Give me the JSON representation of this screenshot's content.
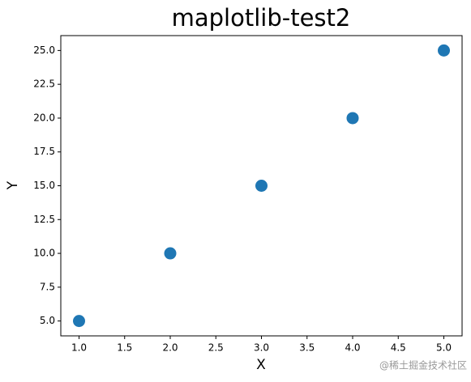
{
  "chart_data": {
    "type": "scatter",
    "title": "maplotlib-test2",
    "x_label": "X",
    "y_label": "Y",
    "x": [
      1,
      2,
      3,
      4,
      5
    ],
    "values": [
      5,
      10,
      15,
      20,
      25
    ],
    "color": "#1f77b4",
    "xlim": [
      0.8,
      5.2
    ],
    "ylim": [
      3.9,
      26.1
    ],
    "xticks": [
      {
        "value": 1,
        "label": "1.0"
      },
      1.5,
      {
        "value": 2,
        "label": "2.0"
      },
      2.5,
      {
        "value": 3,
        "label": "3.0"
      },
      3.5,
      {
        "value": 4,
        "label": "4.0"
      },
      4.5,
      {
        "value": 5,
        "label": "5.0"
      }
    ],
    "yticks": [
      {
        "value": 5,
        "label": "5.0"
      },
      7.5,
      {
        "value": 10,
        "label": "10.0"
      },
      12.5,
      {
        "value": 15,
        "label": "15.0"
      },
      17.5,
      {
        "value": 20,
        "label": "20.0"
      },
      22.5,
      {
        "value": 25,
        "label": "25.0"
      }
    ],
    "grid": false,
    "watermark": "@稀土掘金技术社区"
  }
}
